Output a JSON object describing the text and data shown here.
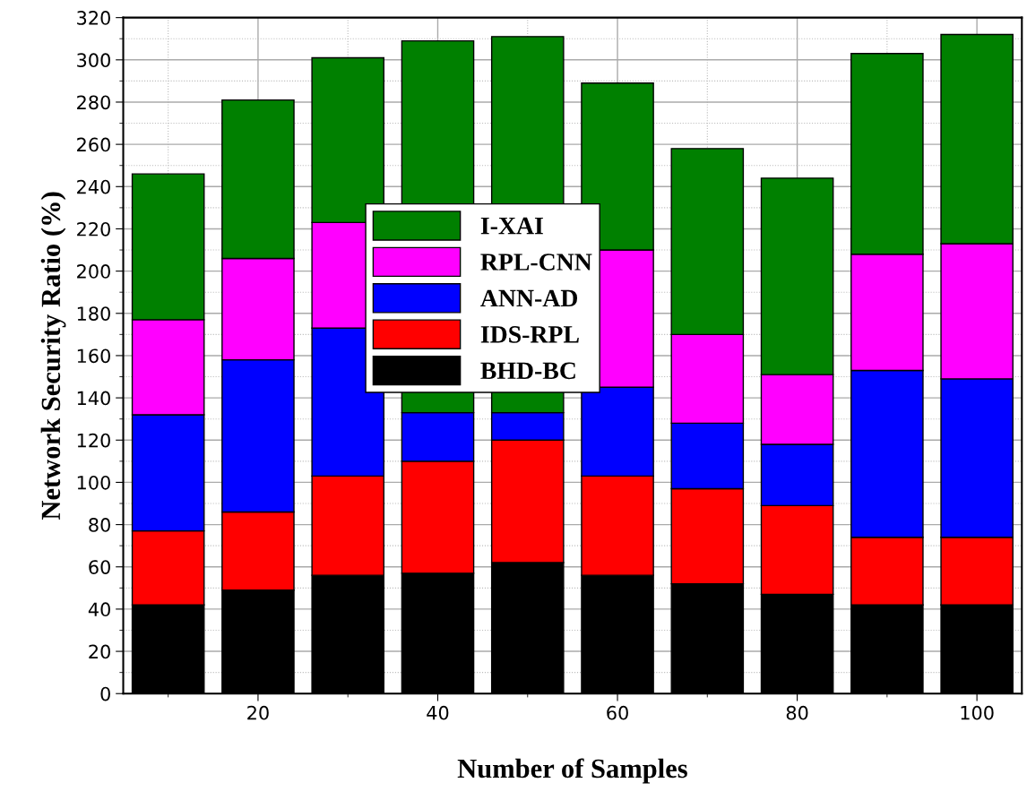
{
  "chart_data": {
    "type": "bar",
    "stacked": true,
    "xlabel": "Number of Samples",
    "ylabel": "Network Security Ratio (%)",
    "x": [
      10,
      20,
      30,
      40,
      50,
      60,
      70,
      80,
      90,
      100
    ],
    "series": [
      {
        "name": "BHD-BC",
        "color": "#000000",
        "values": [
          42,
          49,
          56,
          57,
          62,
          56,
          52,
          47,
          42,
          42
        ]
      },
      {
        "name": "IDS-RPL",
        "color": "#ff0000",
        "values": [
          35,
          37,
          47,
          53,
          58,
          47,
          45,
          42,
          32,
          32
        ]
      },
      {
        "name": "ANN-AD",
        "color": "#0000ff",
        "values": [
          55,
          72,
          70,
          23,
          13,
          42,
          31,
          29,
          79,
          75
        ]
      },
      {
        "name": "RPL-CNN",
        "color": "#ff00ff",
        "values": [
          45,
          48,
          50,
          null,
          null,
          65,
          42,
          33,
          55,
          64
        ]
      },
      {
        "name": "I-XAI",
        "color": "#008000",
        "values": [
          69,
          75,
          78,
          176,
          178,
          79,
          88,
          93,
          95,
          99
        ]
      }
    ],
    "xlim": [
      5,
      105
    ],
    "xticks": [
      20,
      40,
      60,
      80,
      100
    ],
    "ylim": [
      0,
      320
    ],
    "yticks": [
      0,
      20,
      40,
      60,
      80,
      100,
      120,
      140,
      160,
      180,
      200,
      220,
      240,
      260,
      280,
      300,
      320
    ],
    "grid": true,
    "legend": "center"
  }
}
